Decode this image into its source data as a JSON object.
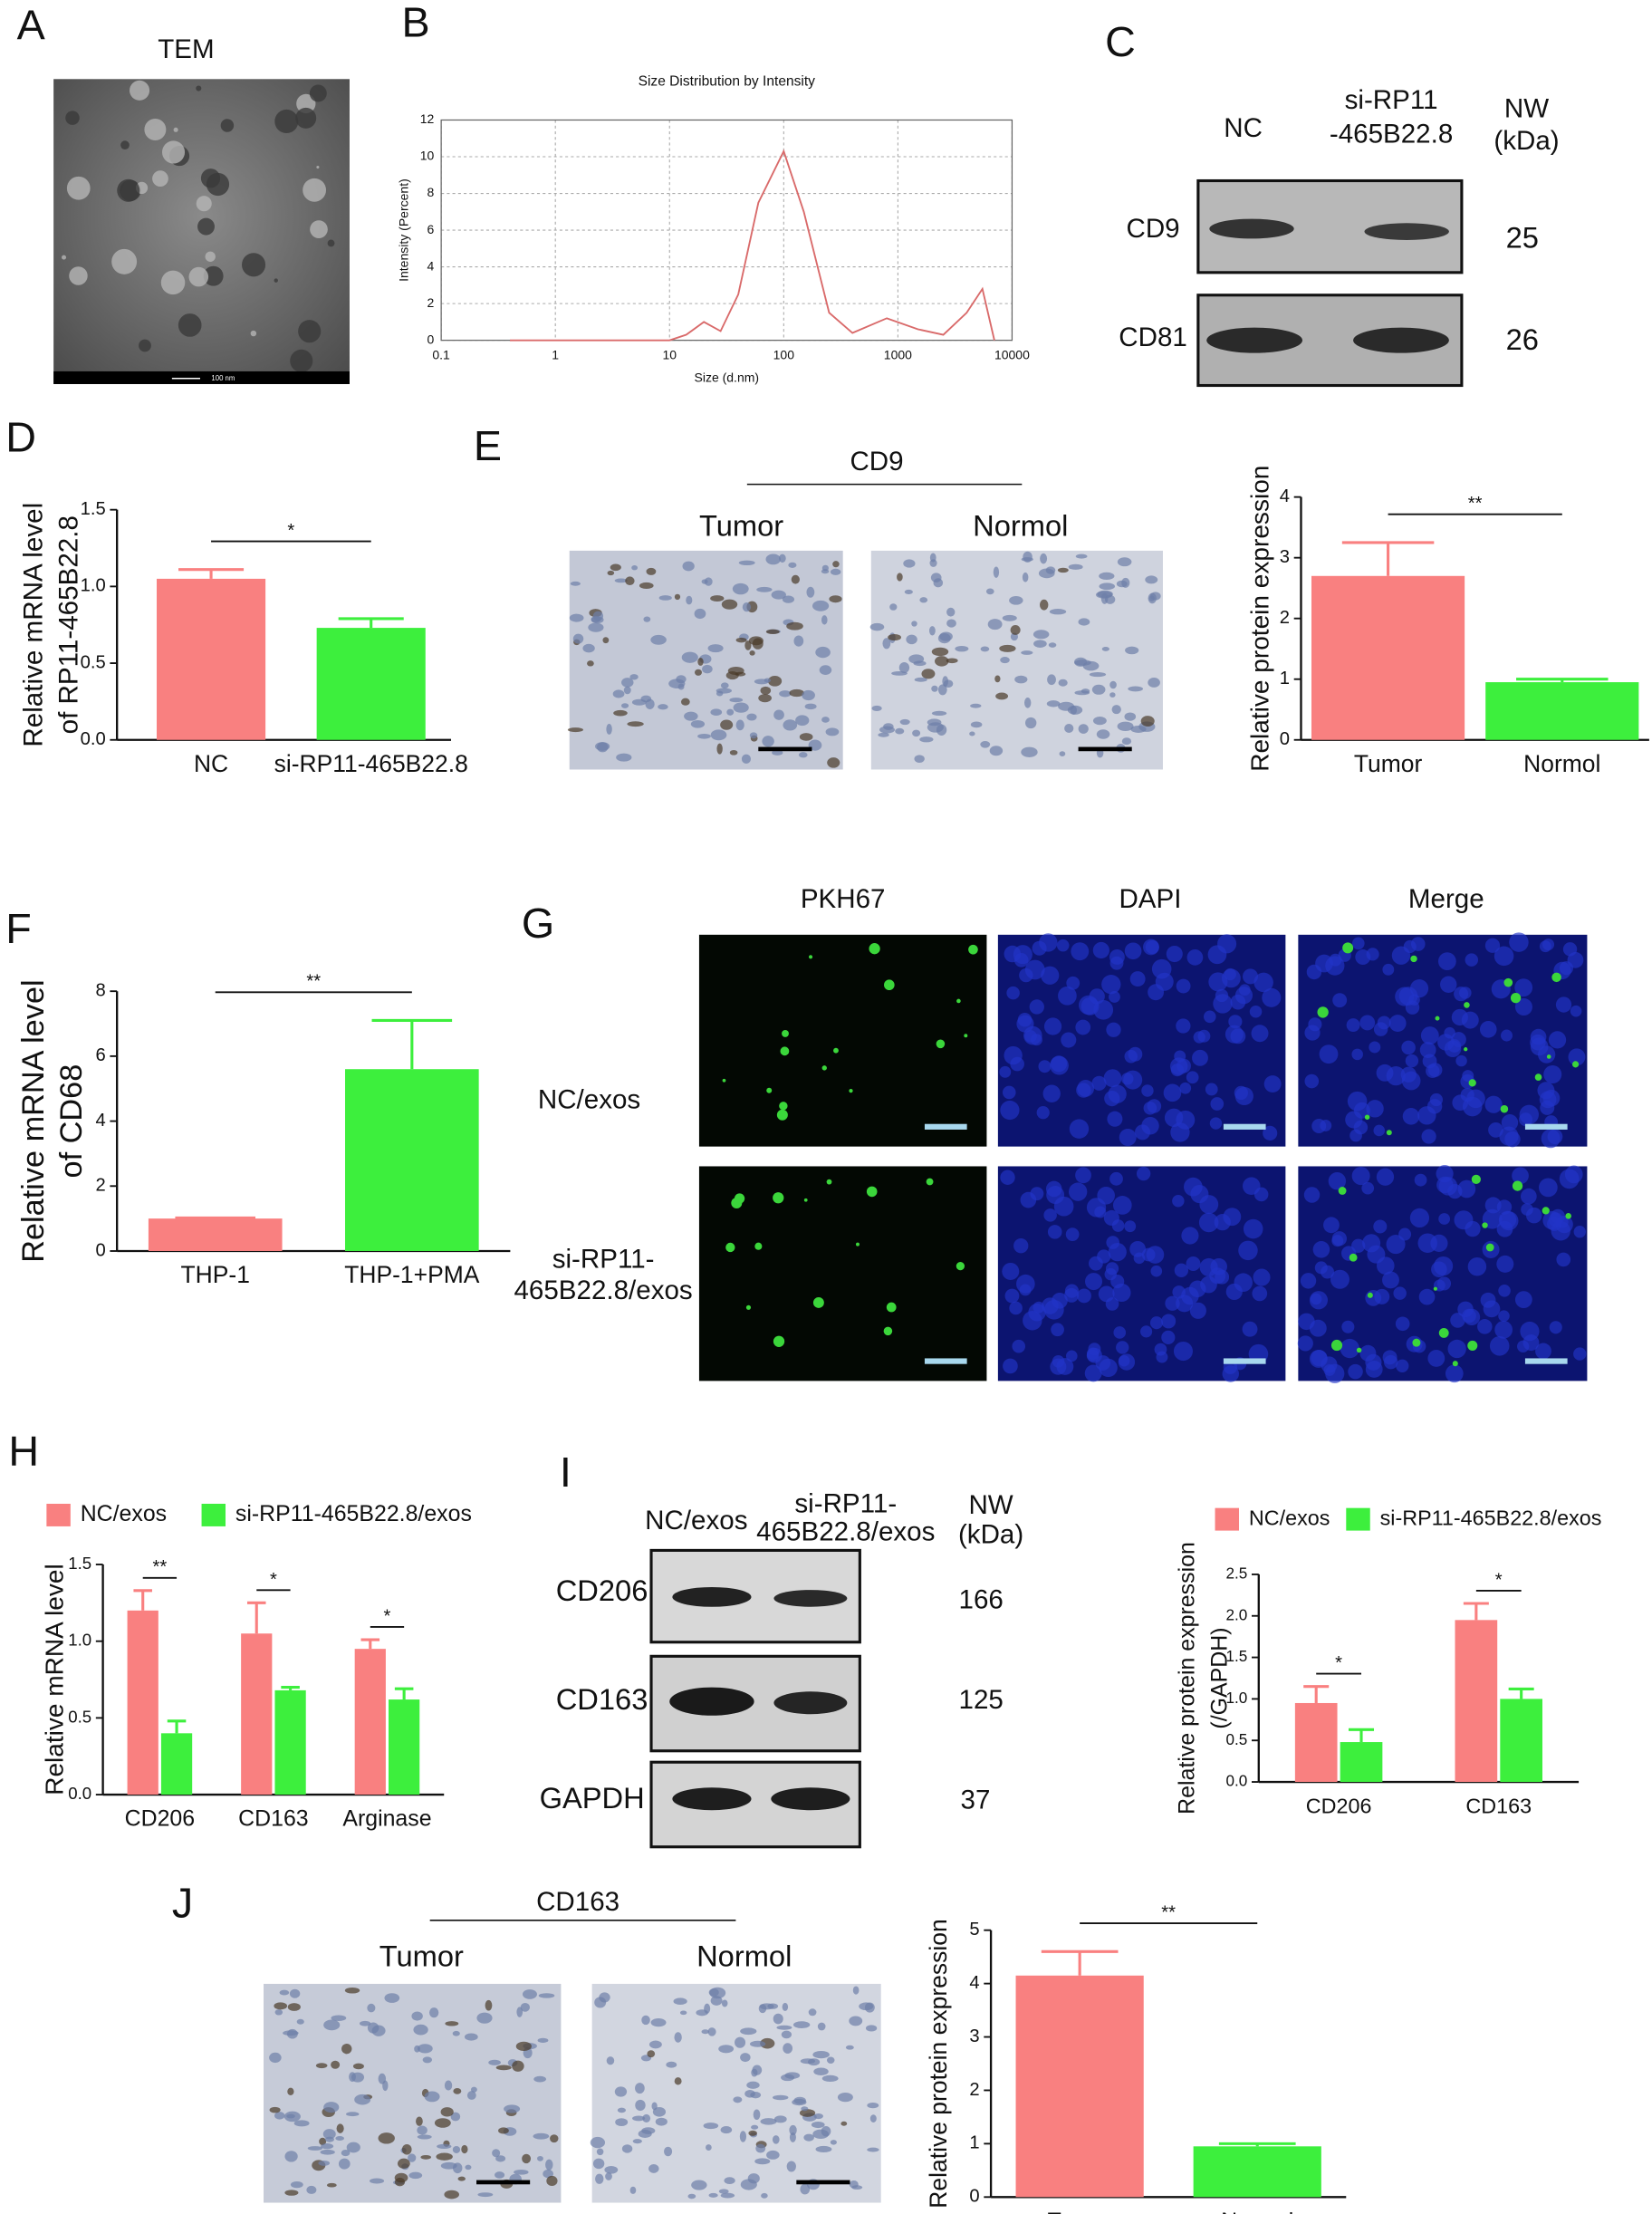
{
  "chart_data": [
    {
      "type": "line",
      "title": "Size Distribution by Intensity",
      "xlabel": "Size (d.nm)",
      "ylabel": "Intensity (Percent)",
      "xscale": "log",
      "grid": true,
      "x": [
        0.4,
        10,
        14,
        20,
        28,
        40,
        60,
        100,
        150,
        250,
        400,
        800,
        1500,
        2500,
        4000,
        5500,
        7000
      ],
      "series": [
        {
          "name": null,
          "color": "#d96a6a",
          "values": [
            0,
            0,
            0.3,
            1.0,
            0.5,
            2.5,
            7.5,
            10.3,
            7,
            1.5,
            0.4,
            1.2,
            0.6,
            0.3,
            1.5,
            2.8,
            0
          ]
        }
      ],
      "xlim": [
        0.1,
        10000
      ],
      "xticks": [
        0.1,
        1,
        10,
        100,
        1000,
        10000
      ],
      "ylim": [
        0,
        12
      ],
      "yticks": [
        0,
        2,
        4,
        6,
        8,
        10,
        12
      ]
    },
    {
      "type": "bar",
      "ylabel": [
        "Relative mRNA level",
        "of RP11-465B22.8"
      ],
      "categories": [
        "NC",
        "si-RP11-465B22.8"
      ],
      "values": [
        1.05,
        0.73
      ],
      "errors": [
        0.06,
        0.06
      ],
      "colors": [
        "#f98080",
        "#3def3d"
      ],
      "significance": "*",
      "ylim": [
        0,
        1.5
      ],
      "yticks": [
        {
          "value": 0,
          "label": "0.0"
        },
        0.5,
        {
          "value": 1,
          "label": "1.0"
        },
        1.5
      ]
    },
    {
      "type": "bar",
      "ylabel": [
        "Relative protein expression"
      ],
      "categories": [
        "Tumor",
        "Normol"
      ],
      "values": [
        2.7,
        0.95
      ],
      "errors": [
        0.55,
        0.05
      ],
      "colors": [
        "#f98080",
        "#3def3d"
      ],
      "significance": "**",
      "ylim": [
        0,
        4
      ],
      "yticks": [
        0,
        1,
        2,
        3,
        4
      ]
    },
    {
      "type": "bar",
      "ylabel": [
        "Relative mRNA level",
        "of CD68"
      ],
      "categories": [
        "THP-1",
        "THP-1+PMA"
      ],
      "values": [
        1.0,
        5.6
      ],
      "errors": [
        0.02,
        1.5
      ],
      "colors": [
        "#f98080",
        "#3def3d"
      ],
      "significance": "**",
      "ylim": [
        0,
        8
      ],
      "yticks": [
        0,
        2,
        4,
        6,
        8
      ]
    },
    {
      "type": "bar",
      "ylabel": [
        "Relative mRNA level"
      ],
      "categories": [
        "CD206",
        "CD163",
        "Arginase"
      ],
      "series": [
        {
          "name": "NC/exos",
          "color": "#f98080",
          "values": [
            1.2,
            1.05,
            0.95
          ],
          "errors": [
            0.13,
            0.2,
            0.06
          ]
        },
        {
          "name": "si-RP11-465B22.8/exos",
          "color": "#3def3d",
          "values": [
            0.4,
            0.68,
            0.62
          ],
          "errors": [
            0.08,
            0.02,
            0.07
          ]
        }
      ],
      "significance": [
        "**",
        "*",
        "*"
      ],
      "ylim": [
        0,
        1.5
      ],
      "yticks": [
        {
          "value": 0,
          "label": "0.0"
        },
        0.5,
        {
          "value": 1,
          "label": "1.0"
        },
        1.5
      ]
    },
    {
      "type": "bar",
      "ylabel": [
        "Relative protein expression",
        "(/GAPDH)"
      ],
      "categories": [
        "CD206",
        "CD163"
      ],
      "series": [
        {
          "name": "NC/exos",
          "color": "#f98080",
          "values": [
            0.95,
            1.95
          ],
          "errors": [
            0.2,
            0.2
          ]
        },
        {
          "name": "si-RP11-465B22.8/exos",
          "color": "#3def3d",
          "values": [
            0.48,
            1.0
          ],
          "errors": [
            0.15,
            0.12
          ]
        }
      ],
      "significance": [
        "*",
        "*"
      ],
      "ylim": [
        0,
        2.5
      ],
      "yticks": [
        {
          "value": 0,
          "label": "0.0"
        },
        0.5,
        {
          "value": 1,
          "label": "1.0"
        },
        1.5,
        {
          "value": 2,
          "label": "2.0"
        },
        2.5
      ]
    },
    {
      "type": "bar",
      "ylabel": [
        "Relative protein expression"
      ],
      "categories": [
        "Tumor",
        "Normol"
      ],
      "values": [
        4.15,
        0.95
      ],
      "errors": [
        0.45,
        0.05
      ],
      "colors": [
        "#f98080",
        "#3def3d"
      ],
      "significance": "**",
      "ylim": [
        0,
        5
      ],
      "yticks": [
        0,
        1,
        2,
        3,
        4,
        5
      ]
    }
  ],
  "panels": {
    "labels": [
      "A",
      "B",
      "C",
      "D",
      "E",
      "F",
      "G",
      "H",
      "I",
      "J"
    ],
    "A": {
      "title": "TEM",
      "scale": "100 nm"
    },
    "C": {
      "columns": [
        [
          "NC"
        ],
        [
          "si-RP11",
          "-465B22.8"
        ]
      ],
      "unit": [
        "NW",
        "(kDa)"
      ],
      "rows": [
        {
          "name": "CD9",
          "weight": 25
        },
        {
          "name": "CD81",
          "weight": 26
        }
      ]
    },
    "E": {
      "stain": "CD9",
      "columns": [
        "Tumor",
        "Normol"
      ]
    },
    "G": {
      "columns": [
        "PKH67",
        "DAPI",
        "Merge"
      ],
      "rows": [
        [
          "NC/exos"
        ],
        [
          "si-RP11-",
          "465B22.8/exos"
        ]
      ]
    },
    "I": {
      "columns": [
        [
          "NC/exos"
        ],
        [
          "si-RP11-",
          "465B22.8/exos"
        ]
      ],
      "unit": [
        "NW",
        "(kDa)"
      ],
      "rows": [
        {
          "name": "CD206",
          "weight": 166
        },
        {
          "name": "CD163",
          "weight": 125
        },
        {
          "name": "GAPDH",
          "weight": 37
        }
      ]
    },
    "J": {
      "stain": "CD163",
      "columns": [
        "Tumor",
        "Normol"
      ]
    }
  }
}
